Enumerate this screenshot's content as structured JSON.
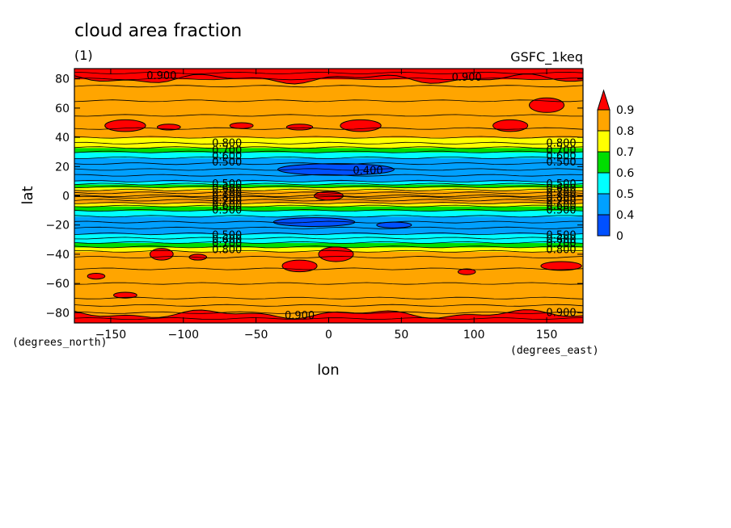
{
  "chart_data": {
    "type": "heatmap",
    "title": "cloud area fraction",
    "subtitle": "(1)",
    "source_label": "GSFC_1keq",
    "xlabel": "lon",
    "ylabel": "lat",
    "x_units": "(degrees_east)",
    "y_units": "(degrees_north)",
    "xlim": [
      -175,
      175
    ],
    "ylim": [
      -87,
      87
    ],
    "x_ticks": [
      -150,
      -100,
      -50,
      0,
      50,
      100,
      150
    ],
    "y_ticks": [
      -80,
      -60,
      -40,
      -20,
      0,
      20,
      40,
      60,
      80
    ],
    "x_tick_labels": [
      "−150",
      "−100",
      "−50",
      "0",
      "50",
      "100",
      "150"
    ],
    "y_tick_labels": [
      "−80",
      "−60",
      "−40",
      "−20",
      "0",
      "20",
      "40",
      "60",
      "80"
    ],
    "contour_levels": [
      0,
      0.4,
      0.5,
      0.6,
      0.7,
      0.8,
      0.9
    ],
    "colorbar_labels": [
      "0",
      "0.4",
      "0.5",
      "0.6",
      "0.7",
      "0.8",
      "0.9"
    ],
    "colorbar_colors": [
      "#0050ff",
      "#00a0ff",
      "#00ffff",
      "#00dd00",
      "#ffff00",
      "#ffa500",
      "#ff0000"
    ],
    "colorbar_extend": "max",
    "zonal_profile": {
      "lat": [
        -87,
        -84,
        -80,
        -75,
        -70,
        -60,
        -50,
        -42,
        -38,
        -35,
        -32,
        -29,
        -26,
        -22,
        -18,
        -14,
        -10,
        -7,
        -5,
        -3,
        -1,
        0,
        2,
        4,
        6,
        8,
        10,
        14,
        18,
        22,
        26,
        30,
        33,
        36,
        40,
        46,
        55,
        65,
        75,
        80,
        84,
        87
      ],
      "value": [
        0.92,
        0.91,
        0.88,
        0.86,
        0.85,
        0.85,
        0.84,
        0.83,
        0.8,
        0.72,
        0.62,
        0.52,
        0.48,
        0.44,
        0.43,
        0.46,
        0.56,
        0.68,
        0.78,
        0.83,
        0.86,
        0.87,
        0.86,
        0.83,
        0.72,
        0.58,
        0.48,
        0.44,
        0.43,
        0.44,
        0.48,
        0.56,
        0.66,
        0.75,
        0.82,
        0.85,
        0.86,
        0.87,
        0.89,
        0.9,
        0.92,
        0.93
      ]
    },
    "contour_labels": [
      {
        "text": "0.900",
        "lon": -115,
        "lat": 82
      },
      {
        "text": "0.900",
        "lon": 95,
        "lat": 81
      },
      {
        "text": "0.800",
        "lon": -70,
        "lat": 36
      },
      {
        "text": "0.700",
        "lon": -70,
        "lat": 31
      },
      {
        "text": "0.600",
        "lon": -70,
        "lat": 27
      },
      {
        "text": "0.500",
        "lon": -70,
        "lat": 23
      },
      {
        "text": "0.400",
        "lon": 27,
        "lat": 17
      },
      {
        "text": "0.800",
        "lon": 160,
        "lat": 36
      },
      {
        "text": "0.700",
        "lon": 160,
        "lat": 31
      },
      {
        "text": "0.600",
        "lon": 160,
        "lat": 27
      },
      {
        "text": "0.500",
        "lon": 160,
        "lat": 23
      },
      {
        "text": "0.500",
        "lon": -70,
        "lat": 8
      },
      {
        "text": "0.600",
        "lon": -70,
        "lat": 5
      },
      {
        "text": "0.700",
        "lon": -70,
        "lat": 2
      },
      {
        "text": "0.800",
        "lon": -70,
        "lat": -1
      },
      {
        "text": "0.700",
        "lon": -70,
        "lat": -4
      },
      {
        "text": "0.600",
        "lon": -70,
        "lat": -7
      },
      {
        "text": "0.500",
        "lon": -70,
        "lat": -10
      },
      {
        "text": "0.500",
        "lon": 160,
        "lat": 8
      },
      {
        "text": "0.600",
        "lon": 160,
        "lat": 5
      },
      {
        "text": "0.700",
        "lon": 160,
        "lat": 2
      },
      {
        "text": "0.800",
        "lon": 160,
        "lat": -1
      },
      {
        "text": "0.700",
        "lon": 160,
        "lat": -4
      },
      {
        "text": "0.600",
        "lon": 160,
        "lat": -7
      },
      {
        "text": "0.500",
        "lon": 160,
        "lat": -10
      },
      {
        "text": "0.500",
        "lon": -70,
        "lat": -27
      },
      {
        "text": "0.600",
        "lon": -70,
        "lat": -30
      },
      {
        "text": "0.700",
        "lon": -70,
        "lat": -33
      },
      {
        "text": "0.800",
        "lon": -70,
        "lat": -37
      },
      {
        "text": "0.500",
        "lon": 160,
        "lat": -27
      },
      {
        "text": "0.600",
        "lon": 160,
        "lat": -30
      },
      {
        "text": "0.700",
        "lon": 160,
        "lat": -33
      },
      {
        "text": "0.800",
        "lon": 160,
        "lat": -37
      },
      {
        "text": "0.900",
        "lon": -20,
        "lat": -82
      },
      {
        "text": "0.900",
        "lon": 160,
        "lat": -80
      }
    ],
    "high_patches": [
      {
        "lon": -140,
        "lat": 48,
        "rlon": 14,
        "rlat": 4
      },
      {
        "lon": -110,
        "lat": 47,
        "rlon": 8,
        "rlat": 2
      },
      {
        "lon": -60,
        "lat": 48,
        "rlon": 8,
        "rlat": 2
      },
      {
        "lon": -20,
        "lat": 47,
        "rlon": 9,
        "rlat": 2
      },
      {
        "lon": 22,
        "lat": 48,
        "rlon": 14,
        "rlat": 4
      },
      {
        "lon": 125,
        "lat": 48,
        "rlon": 12,
        "rlat": 4
      },
      {
        "lon": 150,
        "lat": 62,
        "rlon": 12,
        "rlat": 5
      },
      {
        "lon": -115,
        "lat": -40,
        "rlon": 8,
        "rlat": 4
      },
      {
        "lon": -90,
        "lat": -42,
        "rlon": 6,
        "rlat": 2
      },
      {
        "lon": 5,
        "lat": -40,
        "rlon": 12,
        "rlat": 5
      },
      {
        "lon": -20,
        "lat": -48,
        "rlon": 12,
        "rlat": 4
      },
      {
        "lon": -140,
        "lat": -68,
        "rlon": 8,
        "rlat": 2
      },
      {
        "lon": 95,
        "lat": -52,
        "rlon": 6,
        "rlat": 2
      },
      {
        "lon": -160,
        "lat": -55,
        "rlon": 6,
        "rlat": 2
      },
      {
        "lon": 160,
        "lat": -48,
        "rlon": 14,
        "rlat": 3
      }
    ],
    "low_patches": [
      {
        "lon": 5,
        "lat": 18,
        "rlon": 40,
        "rlat": 4
      },
      {
        "lon": -10,
        "lat": -18,
        "rlon": 28,
        "rlat": 3
      },
      {
        "lon": 45,
        "lat": -20,
        "rlon": 12,
        "rlat": 2
      }
    ],
    "equator_max": {
      "lon": 0,
      "lat": 0,
      "rlon": 10,
      "rlat": 3
    }
  }
}
